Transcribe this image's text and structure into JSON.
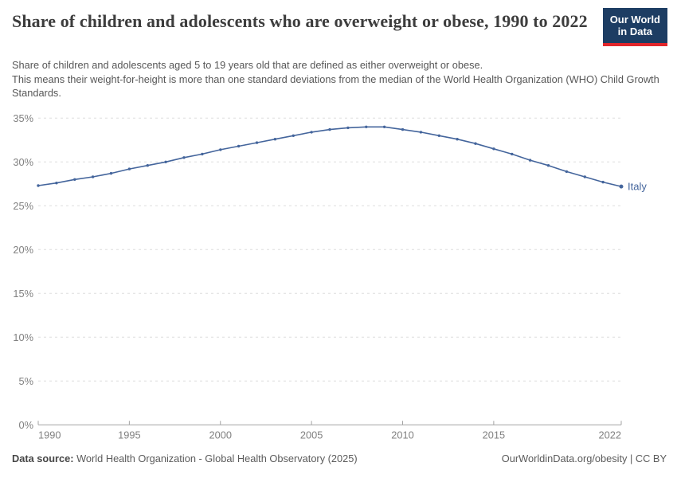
{
  "header": {
    "title": "Share of children and adolescents who are overweight or obese, 1990 to 2022",
    "subtitle_line1": "Share of children and adolescents aged 5 to 19 years old that are defined as either overweight or obese.",
    "subtitle_line2": "This means their weight-for-height is more than one standard deviations from the median of the World Health Organization (WHO) Child Growth Standards.",
    "logo_line1": "Our World",
    "logo_line2": "in Data"
  },
  "chart_data": {
    "type": "line",
    "title": "Share of children and adolescents who are overweight or obese, 1990 to 2022",
    "x": [
      1990,
      1991,
      1992,
      1993,
      1994,
      1995,
      1996,
      1997,
      1998,
      1999,
      2000,
      2001,
      2002,
      2003,
      2004,
      2005,
      2006,
      2007,
      2008,
      2009,
      2010,
      2011,
      2012,
      2013,
      2014,
      2015,
      2016,
      2017,
      2018,
      2019,
      2020,
      2021,
      2022
    ],
    "series": [
      {
        "name": "Italy",
        "values": [
          27.3,
          27.6,
          28.0,
          28.3,
          28.7,
          29.2,
          29.6,
          30.0,
          30.5,
          30.9,
          31.4,
          31.8,
          32.2,
          32.6,
          33.0,
          33.4,
          33.7,
          33.9,
          34.0,
          34.0,
          33.7,
          33.4,
          33.0,
          32.6,
          32.1,
          31.5,
          30.9,
          30.2,
          29.6,
          28.9,
          28.3,
          27.7,
          27.2
        ],
        "color": "#44659c"
      }
    ],
    "xlabel": "",
    "ylabel": "",
    "xlim": [
      1990,
      2022
    ],
    "ylim": [
      0,
      35
    ],
    "yticks": [
      0,
      5,
      10,
      15,
      20,
      25,
      30,
      35
    ],
    "ytick_suffix": "%",
    "xticks": [
      1990,
      1995,
      2000,
      2005,
      2010,
      2015,
      2022
    ],
    "grid": "horizontal-dashed",
    "legend_position": "end-of-line-label",
    "end_label": "Italy"
  },
  "footer": {
    "datasource_label": "Data source:",
    "datasource_text": " World Health Organization - Global Health Observatory (2025)",
    "credit": "OurWorldinData.org/obesity | CC BY"
  },
  "colors": {
    "line": "#44659c",
    "grid": "#dedede",
    "axis": "#a3a3a3",
    "axis_text": "#818181",
    "logo_bg": "#1d3d63",
    "logo_red": "#e2262b",
    "title_text": "#3d3d3d",
    "subtitle_text": "#575757"
  }
}
